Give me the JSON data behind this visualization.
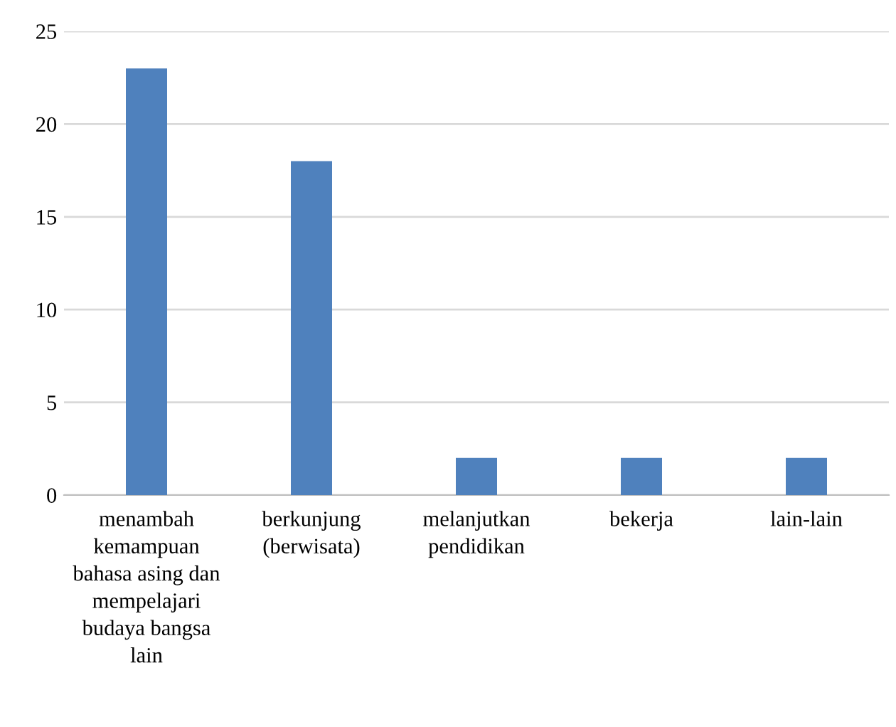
{
  "chart_data": {
    "type": "bar",
    "categories": [
      "menambah\nkemampuan\nbahasa asing dan\nmempelajari\nbudaya bangsa\nlain",
      "berkunjung\n(berwisata)",
      "melanjutkan\npendidikan",
      "bekerja",
      "lain-lain"
    ],
    "values": [
      23,
      18,
      2,
      2,
      2
    ],
    "color": "#4f81bd",
    "ylim": [
      0,
      25
    ],
    "yticks": [
      0,
      5,
      10,
      15,
      20,
      25
    ],
    "grid": "y"
  }
}
